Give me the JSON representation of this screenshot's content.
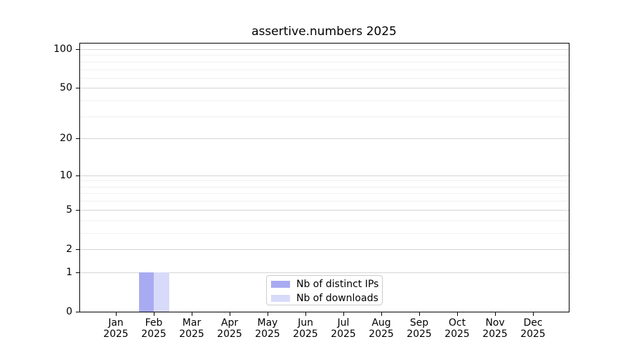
{
  "page": {
    "background": "#ffffff"
  },
  "chart_data": {
    "type": "bar",
    "title": "assertive.numbers 2025",
    "categories": [
      "Jan",
      "Feb",
      "Mar",
      "Apr",
      "May",
      "Jun",
      "Jul",
      "Aug",
      "Sep",
      "Oct",
      "Nov",
      "Dec"
    ],
    "x_tick_year": "2025",
    "series": [
      {
        "name": "Nb of distinct IPs",
        "color": "#a9abf2",
        "values": [
          0,
          1,
          0,
          0,
          0,
          0,
          0,
          0,
          0,
          0,
          0,
          0
        ]
      },
      {
        "name": "Nb of downloads",
        "color": "#d8dafa",
        "values": [
          0,
          1,
          0,
          0,
          0,
          0,
          0,
          0,
          0,
          0,
          0,
          0
        ]
      }
    ],
    "yscale": "log1p",
    "ylim": [
      0,
      111.8
    ],
    "y_major_ticks": [
      0,
      1,
      2,
      5,
      10,
      20,
      50,
      100
    ],
    "y_minor_ticks": [
      3,
      4,
      6,
      7,
      8,
      9,
      30,
      40,
      60,
      70,
      80,
      90
    ],
    "grid": "both",
    "legend_position": "lower center"
  },
  "legend": {
    "items": [
      {
        "label": "Nb of distinct IPs",
        "color": "#a9abf2"
      },
      {
        "label": "Nb of downloads",
        "color": "#d8dafa"
      }
    ]
  },
  "colors": {
    "grid_major": "#d4d4d4",
    "grid_minor": "#f0f0f0",
    "spine": "#000000",
    "text": "#000000",
    "legend_border": "#cccccc",
    "bar_distinct_ips": "#a9abf2",
    "bar_downloads": "#d8dafa"
  }
}
